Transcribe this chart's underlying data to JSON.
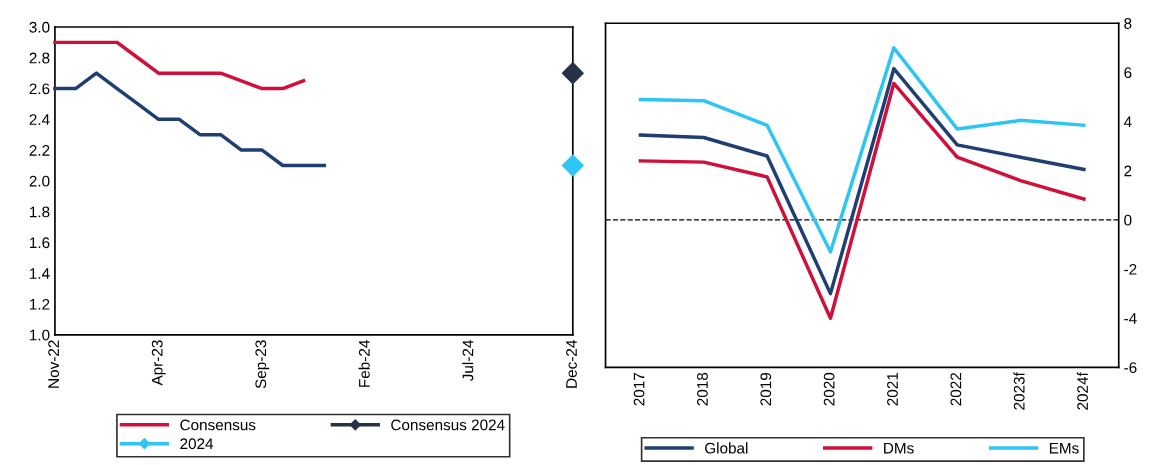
{
  "chart_data": [
    {
      "type": "line",
      "xlim": [
        "2022-11",
        "2024-12"
      ],
      "xticks": [
        {
          "value": "2022-11",
          "label": "Nov-22"
        },
        {
          "value": "2023-04",
          "label": "Apr-23"
        },
        {
          "value": "2023-09",
          "label": "Sep-23"
        },
        {
          "value": "2024-02",
          "label": "Feb-24"
        },
        {
          "value": "2024-07",
          "label": "Jul-24"
        },
        {
          "value": "2024-12",
          "label": "Dec-24"
        }
      ],
      "ylim": [
        1.0,
        3.0
      ],
      "yticks": [
        {
          "value": 1.0,
          "label": "1.0"
        },
        {
          "value": 1.2,
          "label": "1.2"
        },
        {
          "value": 1.4,
          "label": "1.4"
        },
        {
          "value": 1.6,
          "label": "1.6"
        },
        {
          "value": 1.8,
          "label": "1.8"
        },
        {
          "value": 2.0,
          "label": "2.0"
        },
        {
          "value": 2.2,
          "label": "2.2"
        },
        {
          "value": 2.4,
          "label": "2.4"
        },
        {
          "value": 2.6,
          "label": "2.6"
        },
        {
          "value": 2.8,
          "label": "2.8"
        },
        {
          "value": 3.0,
          "label": "3.0"
        }
      ],
      "grid": false,
      "legend": "bottom",
      "series": [
        {
          "color": "#1f3f73",
          "x": [
            "2022-11",
            "2022-12",
            "2023-01",
            "2023-02",
            "2023-03",
            "2023-04",
            "2023-05",
            "2023-06",
            "2023-07",
            "2023-08",
            "2023-09",
            "2023-10",
            "2023-11",
            "2023-12"
          ],
          "values": [
            2.6,
            2.6,
            2.7,
            2.6,
            2.5,
            2.4,
            2.4,
            2.3,
            2.3,
            2.2,
            2.2,
            2.1,
            2.1,
            2.1
          ]
        },
        {
          "name": "Consensus",
          "color": "#d0103a",
          "x": [
            "2022-11",
            "2022-12",
            "2023-01",
            "2023-02",
            "2023-03",
            "2023-04",
            "2023-05",
            "2023-06",
            "2023-07",
            "2023-08",
            "2023-09",
            "2023-10",
            "2023-11"
          ],
          "values": [
            2.9,
            2.9,
            2.9,
            2.9,
            2.8,
            2.7,
            2.7,
            2.7,
            2.7,
            2.65,
            2.6,
            2.6,
            2.65
          ]
        },
        {
          "name": "2024",
          "type": "scatter",
          "marker": "diamond",
          "color": "#2ec5f5",
          "x": [
            "2024-12"
          ],
          "values": [
            2.1
          ]
        },
        {
          "name": "Consensus 2024",
          "type": "scatter",
          "marker": "diamond",
          "color": "#263248",
          "x": [
            "2024-12"
          ],
          "values": [
            2.7
          ]
        }
      ]
    },
    {
      "type": "line",
      "categories": [
        "2017",
        "2018",
        "2019",
        "2020",
        "2021",
        "2022",
        "2023f",
        "2024f"
      ],
      "ylim": [
        -6,
        8
      ],
      "yticks": [
        -6,
        -4,
        -2,
        0,
        2,
        4,
        6,
        8
      ],
      "grid": false,
      "legend": "bottom",
      "ref_lines": [
        {
          "axis": "y",
          "value": 0,
          "color": "#000000",
          "line_style": "dashed"
        }
      ],
      "series": [
        {
          "name": "Global",
          "color": "#1f3f73",
          "values": [
            3.45,
            3.35,
            2.6,
            -3.0,
            6.15,
            3.05,
            2.55,
            2.05
          ]
        },
        {
          "name": "DMs",
          "color": "#d0103a",
          "values": [
            2.4,
            2.35,
            1.75,
            -4.0,
            5.55,
            2.55,
            1.6,
            0.85
          ]
        },
        {
          "name": "EMs",
          "color": "#2ec5f5",
          "values": [
            4.9,
            4.85,
            3.85,
            -1.3,
            7.0,
            3.7,
            4.05,
            3.85
          ]
        }
      ]
    }
  ]
}
